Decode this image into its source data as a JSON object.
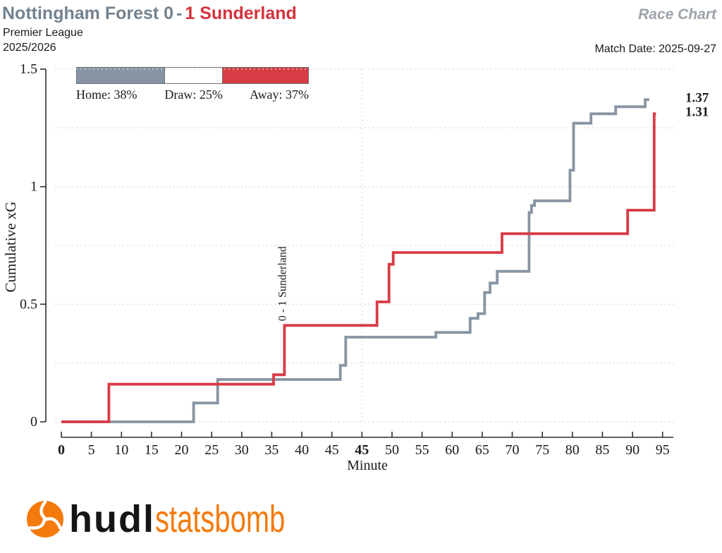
{
  "header": {
    "home_team_score": "Nottingham Forest 0",
    "separator": "-",
    "away_score_team": "1 Sunderland",
    "report_label": "Race Chart",
    "competition": "Premier League",
    "season": "2025/2026",
    "match_date": "Match Date: 2025-09-27"
  },
  "legend": {
    "segments": [
      {
        "label": "Home: 38%",
        "pct": 38,
        "color": "#8794a3"
      },
      {
        "label": "Draw: 25%",
        "pct": 25,
        "color": "#ffffff"
      },
      {
        "label": "Away: 37%",
        "pct": 37,
        "color": "#d93b45"
      }
    ]
  },
  "chart_data": {
    "type": "line",
    "line_style": "step-after",
    "title": "Cumulative xG race chart",
    "xlabel": "Minute",
    "ylabel": "Cumulative xG",
    "ylim": [
      0,
      1.5
    ],
    "yticks": [
      {
        "label": "0",
        "value": 0
      },
      {
        "label": "0.5",
        "value": 0.5
      },
      {
        "label": "1",
        "value": 1
      },
      {
        "label": "1.5",
        "value": 1.5
      }
    ],
    "grid_values": [
      0,
      0.25,
      0.5,
      0.75,
      1,
      1.25,
      1.5
    ],
    "grid_style": "dotted",
    "halftime_pos": 50,
    "second_half_offset": 5,
    "xaxis_max_pos": 101.8,
    "xticks": [
      {
        "label": "0",
        "pos": 0,
        "bold": true
      },
      {
        "label": "5",
        "pos": 5
      },
      {
        "label": "10",
        "pos": 10
      },
      {
        "label": "15",
        "pos": 15
      },
      {
        "label": "20",
        "pos": 20
      },
      {
        "label": "25",
        "pos": 25
      },
      {
        "label": "30",
        "pos": 30
      },
      {
        "label": "35",
        "pos": 35
      },
      {
        "label": "40",
        "pos": 40
      },
      {
        "label": "45",
        "pos": 45
      },
      {
        "label": "45",
        "pos": 50,
        "bold": true
      },
      {
        "label": "50",
        "pos": 55
      },
      {
        "label": "55",
        "pos": 60
      },
      {
        "label": "60",
        "pos": 65
      },
      {
        "label": "65",
        "pos": 70
      },
      {
        "label": "70",
        "pos": 75
      },
      {
        "label": "75",
        "pos": 80
      },
      {
        "label": "80",
        "pos": 85
      },
      {
        "label": "85",
        "pos": 90
      },
      {
        "label": "90",
        "pos": 95
      },
      {
        "label": "95",
        "pos": 100
      }
    ],
    "series": [
      {
        "name": "Nottingham Forest",
        "role": "home",
        "color": "#8794a3",
        "final_label": "1.37",
        "final_label_color": "#6e8095",
        "end_pos": 97.8,
        "points": [
          [
            0,
            0
          ],
          [
            22,
            0.08
          ],
          [
            26,
            0.18
          ],
          [
            46.4,
            0.24
          ],
          [
            47.3,
            0.36
          ],
          [
            62.3,
            0.38
          ],
          [
            68,
            0.44
          ],
          [
            69.3,
            0.46
          ],
          [
            70.4,
            0.55
          ],
          [
            71.3,
            0.59
          ],
          [
            72.5,
            0.64
          ],
          [
            77.8,
            0.89
          ],
          [
            78.2,
            0.92
          ],
          [
            78.7,
            0.94
          ],
          [
            84.6,
            1.07
          ],
          [
            85.2,
            1.27
          ],
          [
            88.1,
            1.31
          ],
          [
            92.2,
            1.34
          ],
          [
            97.1,
            1.37
          ]
        ]
      },
      {
        "name": "Sunderland",
        "role": "away",
        "color": "#d93b45",
        "final_label": "1.31",
        "final_label_color": "#d4323c",
        "end_pos": 98.9,
        "points": [
          [
            0,
            0
          ],
          [
            7.9,
            0.16
          ],
          [
            35.3,
            0.2
          ],
          [
            37.1,
            0.41
          ],
          [
            52.5,
            0.51
          ],
          [
            54.5,
            0.67
          ],
          [
            55.2,
            0.72
          ],
          [
            73.3,
            0.8
          ],
          [
            94.2,
            0.9
          ],
          [
            98.6,
            1.31
          ]
        ]
      }
    ],
    "annotations": [
      {
        "text": "0 - 1 Sunderland",
        "pos": 37.1,
        "value": 0.41,
        "color": "#d93b45"
      }
    ]
  },
  "footer": {
    "logo_hudl": "hudl",
    "logo_statsbomb": "statsbomb",
    "logo_orange": "#f47a0d"
  }
}
